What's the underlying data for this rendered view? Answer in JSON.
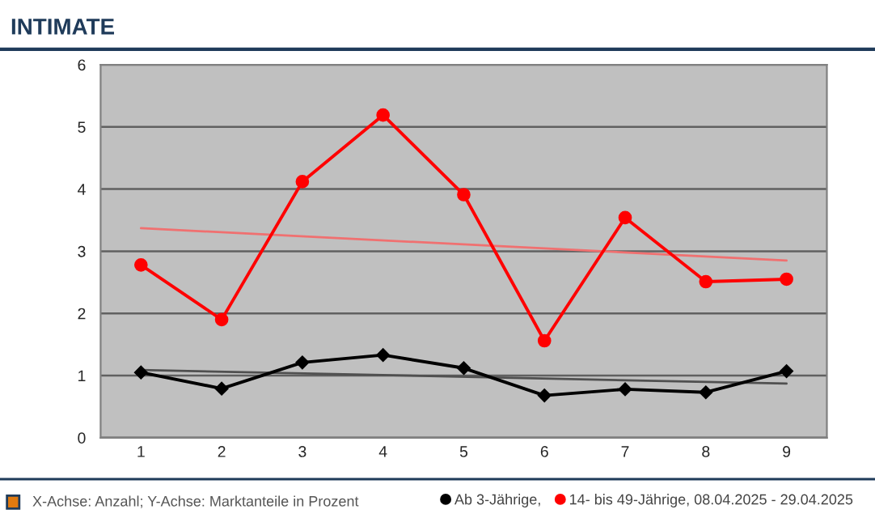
{
  "chart_data": {
    "type": "line",
    "title": "INTIMATE",
    "categories": [
      "1",
      "2",
      "3",
      "4",
      "5",
      "6",
      "7",
      "8",
      "9"
    ],
    "series": [
      {
        "name": "Ab 3-Jährige,",
        "color": "#000000",
        "marker": "diamond",
        "values": [
          1.05,
          0.79,
          1.21,
          1.33,
          1.12,
          0.68,
          0.78,
          0.73,
          1.07
        ]
      },
      {
        "name": "14- bis 49-Jährige, 08.04.2025 - 29.04.2025",
        "color": "#ff0000",
        "marker": "circle",
        "values": [
          2.78,
          1.9,
          4.12,
          5.19,
          3.91,
          1.56,
          3.54,
          2.51,
          2.55
        ]
      },
      {
        "type": "line",
        "color": "#505050",
        "marker": "none",
        "x": [
          "1",
          "9"
        ],
        "values": [
          1.09,
          0.87
        ]
      },
      {
        "type": "line",
        "color": "#f07070",
        "marker": "none",
        "x": [
          "1",
          "9"
        ],
        "values": [
          3.37,
          2.85
        ]
      }
    ],
    "ylim": [
      0,
      6
    ],
    "yticks": [
      0,
      1,
      2,
      3,
      4,
      5,
      6
    ],
    "grid": "y",
    "legend": "bottom",
    "line_style": "solid",
    "annotations": [
      "X-Achse: Anzahl; Y-Achse: Marktanteile in Prozent"
    ]
  }
}
